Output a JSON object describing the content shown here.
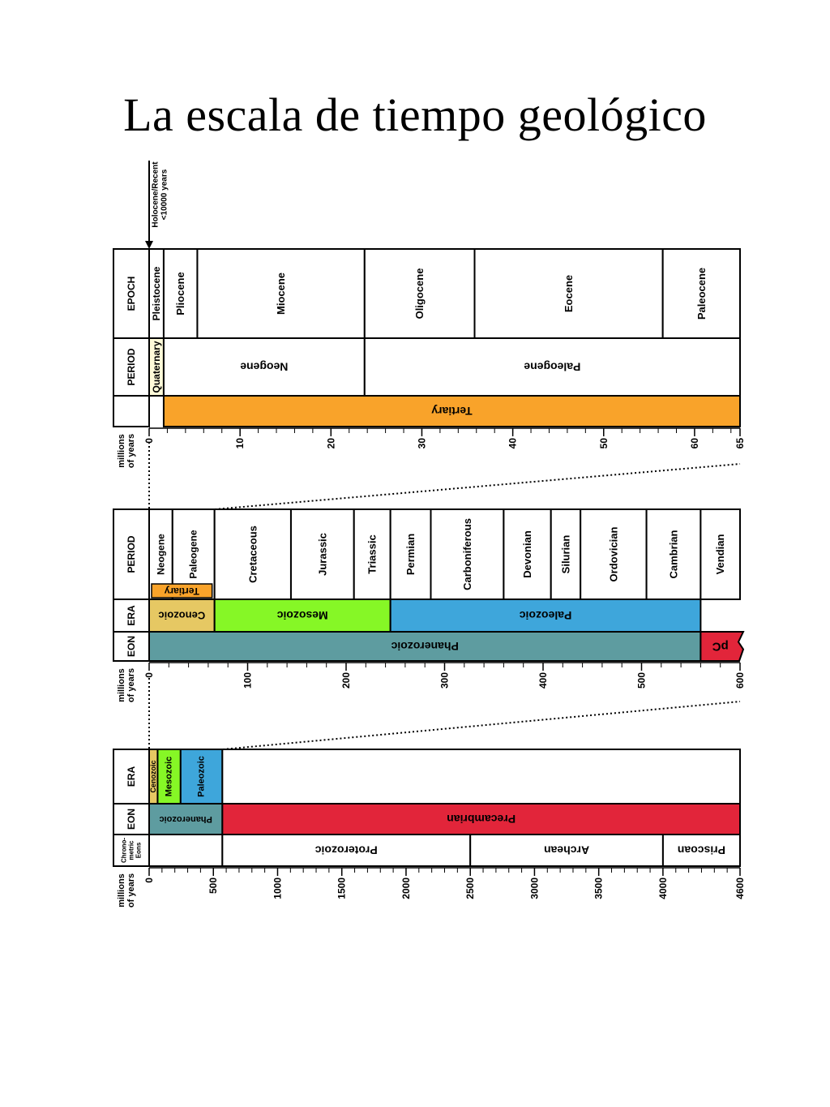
{
  "title": "La escala de tiempo geológico",
  "colors": {
    "tertiary": "#f9a32a",
    "quaternary": "#fffbd9",
    "cenozoic": "#e6c863",
    "mesozoic": "#86f726",
    "paleozoic": "#3ea6db",
    "phanerozoic": "#5e9ca0",
    "precambrian": "#e2253a",
    "white": "#ffffff"
  },
  "holocene_note": {
    "line1": "Holocene/Recent",
    "line2": "<10000 years"
  },
  "axis_title": {
    "line1": "millions",
    "line2": "of years"
  },
  "panels": [
    {
      "id": "cenozoic",
      "range": [
        0,
        65
      ],
      "ticks": [
        "0",
        "10",
        "20",
        "30",
        "40",
        "50",
        "60",
        "65"
      ],
      "tick_values": [
        0,
        10,
        20,
        30,
        40,
        50,
        60,
        65
      ],
      "minor_step": 2,
      "rows": [
        {
          "label": "EPOCH",
          "units": [
            {
              "name": "Pleistocene",
              "start": 0,
              "end": 1.6,
              "color": "white",
              "orient": "up",
              "size": 12
            },
            {
              "name": "Pliocene",
              "start": 1.6,
              "end": 5.3,
              "color": "white",
              "orient": "up",
              "size": 13
            },
            {
              "name": "Miocene",
              "start": 5.3,
              "end": 23.7,
              "color": "white",
              "orient": "up",
              "size": 13
            },
            {
              "name": "Oligocene",
              "start": 23.7,
              "end": 35.8,
              "color": "white",
              "orient": "up",
              "size": 13
            },
            {
              "name": "Eocene",
              "start": 35.8,
              "end": 56.5,
              "color": "white",
              "orient": "up",
              "size": 13
            },
            {
              "name": "Paleocene",
              "start": 56.5,
              "end": 65,
              "color": "white",
              "orient": "up",
              "size": 13
            }
          ]
        },
        {
          "label": "PERIOD",
          "units": [
            {
              "name": "Quaternary",
              "start": 0,
              "end": 1.6,
              "color": "quaternary",
              "orient": "up",
              "size": 12
            },
            {
              "name": "Neogene",
              "start": 1.6,
              "end": 23.7,
              "color": "white",
              "orient": "flip",
              "size": 14
            },
            {
              "name": "Paleogene",
              "start": 23.7,
              "end": 65,
              "color": "white",
              "orient": "flip",
              "size": 14
            }
          ]
        },
        {
          "label": "",
          "units": [
            {
              "name": "Tertiary",
              "start": 1.6,
              "end": 65,
              "color": "tertiary",
              "orient": "flip",
              "size": 14
            }
          ]
        }
      ]
    },
    {
      "id": "phanerozoic",
      "range": [
        0,
        600
      ],
      "ticks": [
        "0",
        "100",
        "200",
        "300",
        "400",
        "500",
        "600"
      ],
      "tick_values": [
        0,
        100,
        200,
        300,
        400,
        500,
        600
      ],
      "minor_step": 20,
      "rows": [
        {
          "label": "PERIOD",
          "units": [
            {
              "name": "Neogene",
              "start": 0,
              "end": 23.7,
              "color": "white",
              "orient": "up",
              "size": 12
            },
            {
              "name": "Paleogene",
              "start": 23.7,
              "end": 66.4,
              "color": "white",
              "orient": "up",
              "size": 12
            },
            {
              "name": "Cretaceous",
              "start": 66.4,
              "end": 144,
              "color": "white",
              "orient": "up",
              "size": 13
            },
            {
              "name": "Jurassic",
              "start": 144,
              "end": 208,
              "color": "white",
              "orient": "up",
              "size": 13
            },
            {
              "name": "Triassic",
              "start": 208,
              "end": 245,
              "color": "white",
              "orient": "up",
              "size": 13
            },
            {
              "name": "Permian",
              "start": 245,
              "end": 286,
              "color": "white",
              "orient": "up",
              "size": 13
            },
            {
              "name": "Carboniferous",
              "start": 286,
              "end": 360,
              "color": "white",
              "orient": "up",
              "size": 13
            },
            {
              "name": "Devonian",
              "start": 360,
              "end": 408,
              "color": "white",
              "orient": "up",
              "size": 13
            },
            {
              "name": "Silurian",
              "start": 408,
              "end": 438,
              "color": "white",
              "orient": "up",
              "size": 13
            },
            {
              "name": "Ordovician",
              "start": 438,
              "end": 505,
              "color": "white",
              "orient": "up",
              "size": 13
            },
            {
              "name": "Cambrian",
              "start": 505,
              "end": 560,
              "color": "white",
              "orient": "up",
              "size": 13
            },
            {
              "name": "Vendian",
              "start": 560,
              "end": 610,
              "color": "white",
              "orient": "up",
              "size": 13
            }
          ]
        },
        {
          "label": "ERA",
          "units": [
            {
              "name": "Cenozoic",
              "start": 0,
              "end": 66.4,
              "color": "cenozoic",
              "orient": "flip",
              "size": 13
            },
            {
              "name": "Mesozoic",
              "start": 66.4,
              "end": 245,
              "color": "mesozoic",
              "orient": "flip",
              "size": 14
            },
            {
              "name": "Paleozoic",
              "start": 245,
              "end": 560,
              "color": "paleozoic",
              "orient": "flip",
              "size": 14
            }
          ]
        },
        {
          "label": "EON",
          "units": [
            {
              "name": "Phanerozoic",
              "start": 0,
              "end": 560,
              "color": "phanerozoic",
              "orient": "flip",
              "size": 14
            },
            {
              "name": "pC",
              "start": 560,
              "end": 600,
              "color": "precambrian",
              "orient": "flip",
              "size": 15
            }
          ]
        }
      ],
      "tertiary_label": "Tertiary"
    },
    {
      "id": "earth",
      "range": [
        0,
        4600
      ],
      "ticks": [
        "0",
        "500",
        "1000",
        "1500",
        "2000",
        "2500",
        "3000",
        "3500",
        "4000",
        "4600"
      ],
      "tick_values": [
        0,
        500,
        1000,
        1500,
        2000,
        2500,
        3000,
        3500,
        4000,
        4600
      ],
      "minor_step": 100,
      "rows": [
        {
          "label": "ERA",
          "units": [
            {
              "name": "Cenozoic",
              "start": 0,
              "end": 66,
              "color": "cenozoic",
              "orient": "up",
              "size": 9
            },
            {
              "name": "Mesozoic",
              "start": 66,
              "end": 245,
              "color": "mesozoic",
              "orient": "up",
              "size": 11
            },
            {
              "name": "Paleozoic",
              "start": 245,
              "end": 570,
              "color": "paleozoic",
              "orient": "up",
              "size": 11
            },
            {
              "name": "",
              "start": 570,
              "end": 4600,
              "color": "white",
              "orient": "up",
              "size": 11
            }
          ]
        },
        {
          "label": "EON",
          "units": [
            {
              "name": "Phanerozoic",
              "start": 0,
              "end": 570,
              "color": "phanerozoic",
              "orient": "flip",
              "size": 11
            },
            {
              "name": "Precambrian",
              "start": 570,
              "end": 4600,
              "color": "precambrian",
              "orient": "flip",
              "size": 14
            }
          ]
        },
        {
          "label": "Chrono-metric Eons",
          "units": [
            {
              "name": "",
              "start": 0,
              "end": 570,
              "color": "white",
              "orient": "flip",
              "size": 13
            },
            {
              "name": "Proterozoic",
              "start": 570,
              "end": 2500,
              "color": "white",
              "orient": "flip",
              "size": 14
            },
            {
              "name": "Archean",
              "start": 2500,
              "end": 4000,
              "color": "white",
              "orient": "flip",
              "size": 14
            },
            {
              "name": "Priscoan",
              "start": 4000,
              "end": 4600,
              "color": "white",
              "orient": "flip",
              "size": 14
            }
          ]
        }
      ]
    }
  ]
}
